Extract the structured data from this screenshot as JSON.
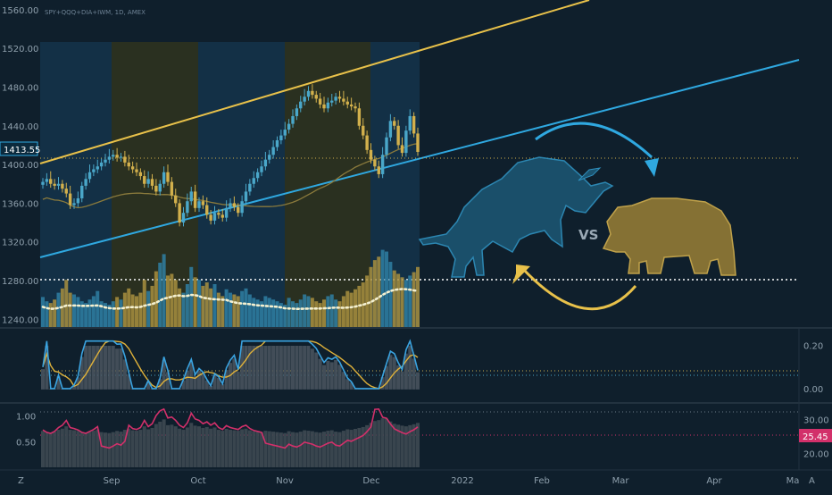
{
  "symbol_label": "SPY+QQQ+DIA+IWM, 1D, AMEX",
  "colors": {
    "background": "#0f1f2c",
    "up": "#4aa7c9",
    "down": "#d2b04c",
    "channel_upper": "#e8c14a",
    "channel_lower": "#2fa8e0",
    "ma": "#8a7a3c",
    "stoch_k": "#3aa3e0",
    "stoch_d": "#e0b23a",
    "rsi_line": "#d2306a",
    "bull": "#1f6f93",
    "bear": "#b99a3e",
    "arrow_blue": "#2fa8e0",
    "arrow_yellow": "#e8c14a"
  },
  "price_axis": {
    "ticks": [
      "1560.00",
      "1520.00",
      "1480.00",
      "1440.00",
      "1400.00",
      "1360.00",
      "1320.00",
      "1280.00",
      "1240.00"
    ],
    "current_label": "1413.55",
    "range": [
      1232,
      1570
    ]
  },
  "osc_axis": {
    "ticks": [
      "0.20",
      "0.00"
    ],
    "range": [
      -0.05,
      0.26
    ]
  },
  "bottom_axis": {
    "ticks_left": [
      "1.00",
      "0.50"
    ],
    "ticks_right": [
      "30.00",
      "20.00"
    ],
    "current_label": "25.45",
    "left_range": [
      0.0,
      1.2
    ],
    "right_range": [
      16,
      34
    ]
  },
  "time_axis": {
    "labels": [
      "Sep",
      "Oct",
      "Nov",
      "Dec",
      "2022",
      "Feb",
      "Mar",
      "Apr",
      "Ma"
    ],
    "left_button": "Z",
    "right_button": "A"
  },
  "overlay": {
    "vs_text": "VS"
  },
  "chart_data": {
    "type": "candlestick",
    "x": "trading days Aug 2021 - Dec 2021",
    "ohlc_close": [
      1382,
      1385,
      1380,
      1378,
      1380,
      1375,
      1370,
      1358,
      1360,
      1365,
      1378,
      1385,
      1392,
      1395,
      1398,
      1402,
      1405,
      1408,
      1410,
      1407,
      1408,
      1402,
      1398,
      1395,
      1392,
      1388,
      1380,
      1385,
      1378,
      1372,
      1380,
      1392,
      1382,
      1368,
      1360,
      1340,
      1350,
      1362,
      1372,
      1355,
      1362,
      1358,
      1348,
      1342,
      1350,
      1348,
      1345,
      1355,
      1360,
      1356,
      1350,
      1362,
      1372,
      1380,
      1386,
      1392,
      1398,
      1405,
      1410,
      1418,
      1425,
      1430,
      1436,
      1442,
      1450,
      1458,
      1465,
      1470,
      1476,
      1472,
      1468,
      1462,
      1458,
      1464,
      1466,
      1470,
      1468,
      1465,
      1462,
      1460,
      1458,
      1440,
      1430,
      1415,
      1405,
      1398,
      1390,
      1410,
      1428,
      1445,
      1440,
      1420,
      1412,
      1435,
      1450,
      1432,
      1413
    ],
    "volume": [
      0.35,
      0.3,
      0.28,
      0.32,
      0.4,
      0.45,
      0.55,
      0.4,
      0.38,
      0.35,
      0.3,
      0.28,
      0.32,
      0.36,
      0.42,
      0.3,
      0.28,
      0.26,
      0.3,
      0.35,
      0.32,
      0.4,
      0.45,
      0.38,
      0.36,
      0.4,
      0.55,
      0.42,
      0.48,
      0.65,
      0.75,
      0.85,
      0.6,
      0.62,
      0.55,
      0.45,
      0.4,
      0.5,
      0.7,
      0.58,
      0.55,
      0.48,
      0.52,
      0.45,
      0.5,
      0.4,
      0.36,
      0.44,
      0.4,
      0.38,
      0.36,
      0.42,
      0.45,
      0.38,
      0.34,
      0.32,
      0.3,
      0.36,
      0.34,
      0.32,
      0.3,
      0.28,
      0.26,
      0.34,
      0.3,
      0.28,
      0.32,
      0.38,
      0.36,
      0.34,
      0.3,
      0.28,
      0.32,
      0.36,
      0.38,
      0.32,
      0.3,
      0.36,
      0.42,
      0.4,
      0.44,
      0.48,
      0.52,
      0.6,
      0.7,
      0.78,
      0.82,
      0.9,
      0.88,
      0.76,
      0.66,
      0.62,
      0.58,
      0.55,
      0.6,
      0.64,
      0.7
    ]
  }
}
